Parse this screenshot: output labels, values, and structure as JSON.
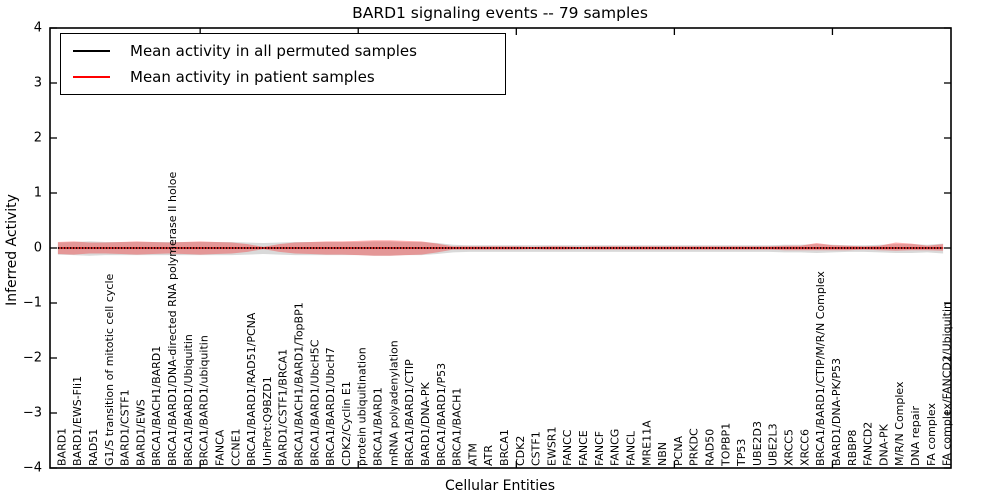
{
  "title": "BARD1 signaling events -- 79 samples",
  "axes": {
    "xlabel": "Cellular Entities",
    "ylabel": "Inferred Activity",
    "ytick_labels": [
      "4",
      "3",
      "2",
      "1",
      "0",
      "−1",
      "−2",
      "−3",
      "−4"
    ]
  },
  "legend": {
    "items": [
      {
        "label": "Mean activity in all permuted samples",
        "color": "#000000"
      },
      {
        "label": "Mean activity in patient samples",
        "color": "#ff0000"
      }
    ]
  },
  "chart_data": {
    "type": "line",
    "title": "BARD1 signaling events -- 79 samples",
    "xlabel": "Cellular Entities",
    "ylabel": "Inferred Activity",
    "ylim": [
      -4,
      4
    ],
    "yticks": [
      4,
      3,
      2,
      1,
      0,
      -1,
      -2,
      -3,
      -4
    ],
    "xlim": [
      0.5,
      57.5
    ],
    "top_axis_ticks": [
      10,
      20,
      30,
      40,
      50
    ],
    "grid": false,
    "legend_position": "upper left",
    "categories": [
      "BARD1",
      "BARD1/EWS-Fli1",
      "RAD51",
      "G1/S transition of mitotic cell cycle",
      "BARD1/CSTF1",
      "BARD1/EWS",
      "BRCA1/BACH1/BARD1",
      "BRCA1/BARD1/DNA-directed RNA polymerase II holoe",
      "BRCA1/BARD1/Ubiquitin",
      "BRCA1/BARD1/ubiquitin",
      "FANCA",
      "CCNE1",
      "BRCA1/BARD1/RAD51/PCNA",
      "UniProt:Q9BZD1",
      "BARD1/CSTF1/BRCA1",
      "BRCA1/BACH1/BARD1/TopBP1",
      "BRCA1/BARD1/UbcH5C",
      "BRCA1/BARD1/UbcH7",
      "CDK2/Cyclin E1",
      "protein ubiquitination",
      "BRCA1/BARD1",
      "mRNA polyadenylation",
      "BRCA1/BARD1/CTIP",
      "BARD1/DNA-PK",
      "BRCA1/BARD1/P53",
      "BRCA1/BACH1",
      "ATM",
      "ATR",
      "BRCA1",
      "CDK2",
      "CSTF1",
      "EWSR1",
      "FANCC",
      "FANCE",
      "FANCF",
      "FANCG",
      "FANCL",
      "MRE11A",
      "NBN",
      "PCNA",
      "PRKDC",
      "RAD50",
      "TOPBP1",
      "TP53",
      "UBE2D3",
      "UBE2L3",
      "XRCC5",
      "XRCC6",
      "BRCA1/BARD1/CTIP/M/R/N Complex",
      "BARD1/DNA-PK/P53",
      "RBBP8",
      "FANCD2",
      "DNA-PK",
      "M/R/N Complex",
      "DNA repair",
      "FA complex",
      "FA complex/FANCD2/Ubiquitin"
    ],
    "series": [
      {
        "name": "Mean activity in all permuted samples",
        "color": "#000000",
        "line_style": "dotted",
        "mean_value": 0.0,
        "band_color": "#aaaaaa",
        "band_opacity": 0.45,
        "band_hi": [
          0.1,
          0.11,
          0.12,
          0.11,
          0.11,
          0.11,
          0.11,
          0.11,
          0.11,
          0.11,
          0.11,
          0.11,
          0.1,
          0.09,
          0.1,
          0.11,
          0.11,
          0.11,
          0.11,
          0.11,
          0.12,
          0.12,
          0.11,
          0.11,
          0.09,
          0.06,
          0.05,
          0.05,
          0.05,
          0.05,
          0.05,
          0.05,
          0.05,
          0.05,
          0.05,
          0.05,
          0.05,
          0.05,
          0.05,
          0.05,
          0.05,
          0.05,
          0.05,
          0.05,
          0.05,
          0.05,
          0.06,
          0.06,
          0.07,
          0.06,
          0.05,
          0.05,
          0.06,
          0.07,
          0.07,
          0.06,
          0.08
        ],
        "band_lo": [
          -0.12,
          -0.13,
          -0.14,
          -0.13,
          -0.13,
          -0.13,
          -0.13,
          -0.13,
          -0.13,
          -0.13,
          -0.13,
          -0.13,
          -0.12,
          -0.11,
          -0.12,
          -0.13,
          -0.13,
          -0.13,
          -0.13,
          -0.13,
          -0.14,
          -0.14,
          -0.13,
          -0.13,
          -0.11,
          -0.08,
          -0.07,
          -0.07,
          -0.07,
          -0.07,
          -0.07,
          -0.07,
          -0.07,
          -0.07,
          -0.07,
          -0.07,
          -0.07,
          -0.07,
          -0.07,
          -0.07,
          -0.07,
          -0.07,
          -0.07,
          -0.07,
          -0.07,
          -0.07,
          -0.08,
          -0.08,
          -0.09,
          -0.08,
          -0.07,
          -0.07,
          -0.08,
          -0.09,
          -0.09,
          -0.08,
          -0.1
        ]
      },
      {
        "name": "Mean activity in patient samples",
        "color": "#ee1111",
        "line_style": "solid",
        "mean_value": 0.0,
        "band_color": "#ff0000",
        "band_opacity": 0.3,
        "band_hi": [
          0.11,
          0.12,
          0.1,
          0.1,
          0.11,
          0.12,
          0.11,
          0.1,
          0.11,
          0.12,
          0.11,
          0.1,
          0.07,
          0.02,
          0.07,
          0.1,
          0.11,
          0.12,
          0.12,
          0.13,
          0.14,
          0.14,
          0.13,
          0.12,
          0.08,
          0.03,
          0.03,
          0.03,
          0.03,
          0.03,
          0.02,
          0.03,
          0.03,
          0.02,
          0.03,
          0.03,
          0.03,
          0.03,
          0.03,
          0.03,
          0.03,
          0.03,
          0.03,
          0.03,
          0.03,
          0.03,
          0.04,
          0.04,
          0.09,
          0.05,
          0.04,
          0.03,
          0.04,
          0.1,
          0.08,
          0.04,
          0.07
        ],
        "band_lo": [
          -0.11,
          -0.12,
          -0.1,
          -0.1,
          -0.11,
          -0.12,
          -0.11,
          -0.1,
          -0.11,
          -0.12,
          -0.11,
          -0.1,
          -0.07,
          -0.02,
          -0.07,
          -0.1,
          -0.11,
          -0.12,
          -0.12,
          -0.13,
          -0.14,
          -0.14,
          -0.13,
          -0.12,
          -0.08,
          -0.03,
          -0.03,
          -0.03,
          -0.03,
          -0.03,
          -0.02,
          -0.03,
          -0.03,
          -0.02,
          -0.03,
          -0.03,
          -0.03,
          -0.03,
          -0.03,
          -0.03,
          -0.03,
          -0.03,
          -0.03,
          -0.03,
          -0.03,
          -0.03,
          -0.04,
          -0.04,
          -0.04,
          -0.04,
          -0.04,
          -0.03,
          -0.04,
          -0.05,
          -0.04,
          -0.04,
          -0.05
        ]
      }
    ]
  }
}
